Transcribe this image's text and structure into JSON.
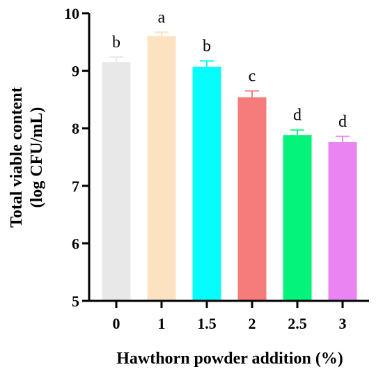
{
  "chart_data": {
    "type": "bar",
    "categories": [
      "0",
      "1",
      "1.5",
      "2",
      "2.5",
      "3"
    ],
    "values": [
      9.15,
      9.6,
      9.07,
      8.54,
      7.88,
      7.76
    ],
    "errors": [
      0.09,
      0.07,
      0.1,
      0.11,
      0.09,
      0.1
    ],
    "significance": [
      "b",
      "a",
      "b",
      "c",
      "d",
      "d"
    ],
    "colors": [
      "#e8e8e8",
      "#fde2c1",
      "#05fdfd",
      "#f67c7c",
      "#04f47b",
      "#ea84f2"
    ],
    "ylabel_line1": "Total viable content",
    "ylabel_line2": "(log CFU/mL)",
    "xlabel": "Hawthorn powder addition (%)",
    "ylim": [
      5,
      10
    ],
    "yticks": [
      5,
      6,
      7,
      8,
      9,
      10
    ],
    "grid": false,
    "legend": "none"
  }
}
